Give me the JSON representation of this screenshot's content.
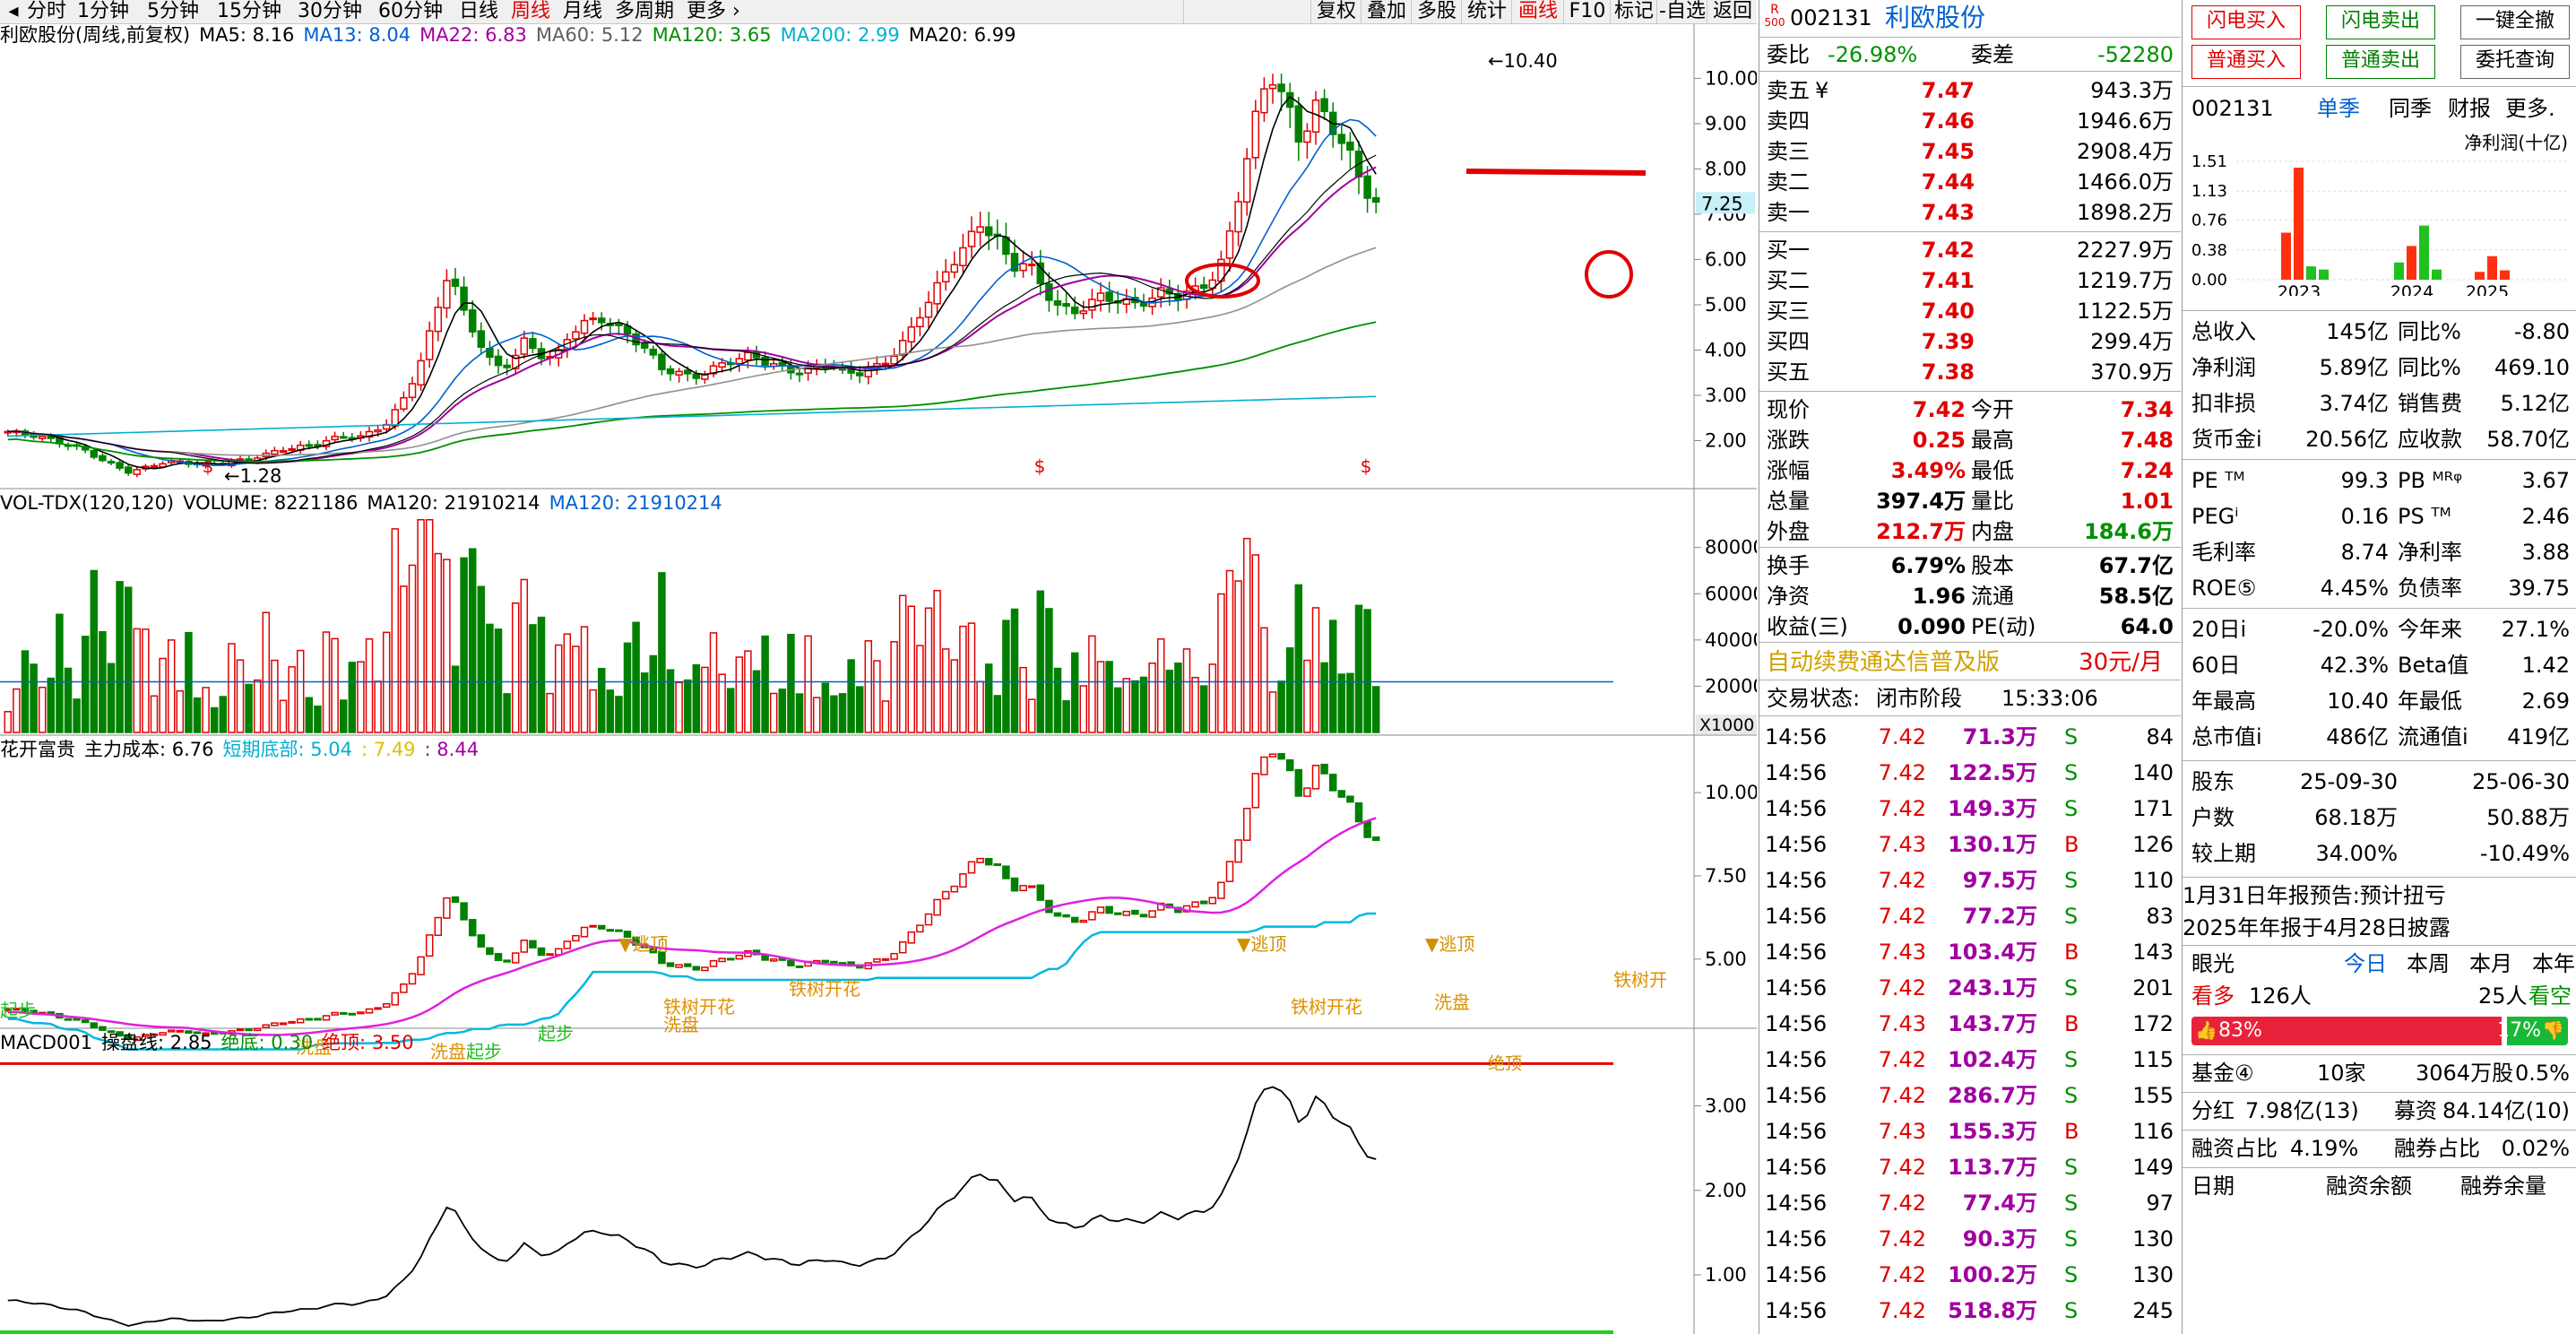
{
  "toolbar": {
    "periods": [
      "分时",
      "1分钟",
      "5分钟",
      "15分钟",
      "30分钟",
      "60分钟",
      "日线",
      "周线",
      "月线",
      "多周期",
      "更多"
    ],
    "active_period": "周线",
    "right_buttons": [
      "复权",
      "叠加",
      "多股",
      "统计",
      "画线",
      "F10",
      "标记",
      "-自选",
      "返回"
    ],
    "active_right": "画线"
  },
  "main": {
    "legend": [
      {
        "text": "利欧股份(周线,前复权)",
        "color": "#000000"
      },
      {
        "text": "MA5: 8.16",
        "color": "#000000"
      },
      {
        "text": "MA13: 8.04",
        "color": "#0060d0"
      },
      {
        "text": "MA22: 6.83",
        "color": "#a000a0"
      },
      {
        "text": "MA60: 5.12",
        "color": "#606060"
      },
      {
        "text": "MA120: 3.65",
        "color": "#009000"
      },
      {
        "text": "MA200: 2.99",
        "color": "#00b0d0"
      },
      {
        "text": "MA20: 6.99",
        "color": "#000000"
      }
    ],
    "y_ticks": [
      "10.00",
      "9.00",
      "8.00",
      "7.00",
      "6.00",
      "5.00",
      "4.00",
      "3.00",
      "2.00"
    ],
    "last_price_tag": "7.25",
    "high_label": "10.40",
    "low_label": "1.28",
    "s_marker": "$"
  },
  "volume": {
    "legend": [
      {
        "text": "VOL-TDX(120,120)",
        "color": "#000000"
      },
      {
        "text": "VOLUME: 8221186",
        "color": "#000000"
      },
      {
        "text": "MA120: 21910214",
        "color": "#000000"
      },
      {
        "text": "MA120: 21910214",
        "color": "#0060d0"
      }
    ],
    "y_ticks": [
      "80000",
      "60000",
      "40000",
      "20000"
    ],
    "unit": "X1000"
  },
  "hkfg": {
    "legend": [
      {
        "text": "花开富贵",
        "color": "#000000"
      },
      {
        "text": "主力成本: 6.76",
        "color": "#000000"
      },
      {
        "text": "短期底部: 5.04",
        "color": "#00b0d0"
      },
      {
        "text": ": 7.49",
        "color": "#e0c000"
      },
      {
        "text": ": 8.44",
        "color": "#a000a0"
      }
    ],
    "y_ticks": [
      "10.00",
      "7.50",
      "5.00"
    ],
    "labels": [
      "逃顶",
      "逃顶",
      "逃顶",
      "铁树开花",
      "铁树开花",
      "铁树开花",
      "铁树开",
      "洗盘",
      "洗盘",
      "洗盘",
      "起步",
      "起步",
      "起步",
      "洗盘"
    ]
  },
  "macd": {
    "legend": [
      {
        "text": "MACD001",
        "color": "#000000"
      },
      {
        "text": "操盘线: 2.85",
        "color": "#000000"
      },
      {
        "text": "绝底: 0.30",
        "color": "#009000"
      },
      {
        "text": "绝顶: 3.50",
        "color": "#e00000"
      }
    ],
    "y_ticks": [
      "3.00",
      "2.00",
      "1.00"
    ],
    "top_label": "绝顶"
  },
  "quote": {
    "code": "002131",
    "name": "利欧股份",
    "rank_badge": "R",
    "rank_num": "500",
    "weibi_label": "委比",
    "weibi": "-26.98%",
    "weicha_label": "委差",
    "weicha": "-52280",
    "asks": [
      {
        "label": "卖五",
        "flag": "¥",
        "price": "7.47",
        "vol": "943.3万"
      },
      {
        "label": "卖四",
        "flag": "",
        "price": "7.46",
        "vol": "1946.6万"
      },
      {
        "label": "卖三",
        "flag": "",
        "price": "7.45",
        "vol": "2908.4万"
      },
      {
        "label": "卖二",
        "flag": "",
        "price": "7.44",
        "vol": "1466.0万"
      },
      {
        "label": "卖一",
        "flag": "",
        "price": "7.43",
        "vol": "1898.2万"
      }
    ],
    "bids": [
      {
        "label": "买一",
        "price": "7.42",
        "vol": "2227.9万"
      },
      {
        "label": "买二",
        "price": "7.41",
        "vol": "1219.7万"
      },
      {
        "label": "买三",
        "price": "7.40",
        "vol": "1122.5万"
      },
      {
        "label": "买四",
        "price": "7.39",
        "vol": "299.4万"
      },
      {
        "label": "买五",
        "price": "7.38",
        "vol": "370.9万"
      }
    ],
    "stats": [
      {
        "l1": "现价",
        "v1": "7.42",
        "c1": "#e00000",
        "l2": "今开",
        "v2": "7.34",
        "c2": "#e00000"
      },
      {
        "l1": "涨跌",
        "v1": "0.25",
        "c1": "#e00000",
        "l2": "最高",
        "v2": "7.48",
        "c2": "#e00000"
      },
      {
        "l1": "涨幅",
        "v1": "3.49%",
        "c1": "#e00000",
        "l2": "最低",
        "v2": "7.24",
        "c2": "#e00000"
      },
      {
        "l1": "总量",
        "v1": "397.4万",
        "c1": "#000000",
        "l2": "量比",
        "v2": "1.01",
        "c2": "#e00000"
      },
      {
        "l1": "外盘",
        "v1": "212.7万",
        "c1": "#e00000",
        "l2": "内盘",
        "v2": "184.6万",
        "c2": "#009000"
      }
    ],
    "stats2": [
      {
        "l1": "换手",
        "v1": "6.79%",
        "l2": "股本",
        "v2": "67.7亿"
      },
      {
        "l1": "净资",
        "v1": "1.96",
        "l2": "流通",
        "v2": "58.5亿"
      },
      {
        "l1": "收益(三)",
        "v1": "0.090",
        "l2": "PE(动)",
        "v2": "64.0"
      }
    ],
    "ad_text": "自动续费通达信普及版",
    "ad_price": "30元/月",
    "status_label": "交易状态:",
    "status": "闭市阶段",
    "status_time": "15:33:06",
    "ticks": [
      {
        "t": "14:56",
        "p": "7.42",
        "v": "71.3万",
        "bs": "S",
        "n": "84"
      },
      {
        "t": "14:56",
        "p": "7.42",
        "v": "122.5万",
        "bs": "S",
        "n": "140"
      },
      {
        "t": "14:56",
        "p": "7.42",
        "v": "149.3万",
        "bs": "S",
        "n": "171"
      },
      {
        "t": "14:56",
        "p": "7.43",
        "v": "130.1万",
        "bs": "B",
        "n": "126"
      },
      {
        "t": "14:56",
        "p": "7.42",
        "v": "97.5万",
        "bs": "S",
        "n": "110"
      },
      {
        "t": "14:56",
        "p": "7.42",
        "v": "77.2万",
        "bs": "S",
        "n": "83"
      },
      {
        "t": "14:56",
        "p": "7.43",
        "v": "103.4万",
        "bs": "B",
        "n": "143"
      },
      {
        "t": "14:56",
        "p": "7.42",
        "v": "243.1万",
        "bs": "S",
        "n": "201"
      },
      {
        "t": "14:56",
        "p": "7.43",
        "v": "143.7万",
        "bs": "B",
        "n": "172"
      },
      {
        "t": "14:56",
        "p": "7.42",
        "v": "102.4万",
        "bs": "S",
        "n": "115"
      },
      {
        "t": "14:56",
        "p": "7.42",
        "v": "286.7万",
        "bs": "S",
        "n": "155"
      },
      {
        "t": "14:56",
        "p": "7.43",
        "v": "155.3万",
        "bs": "B",
        "n": "116"
      },
      {
        "t": "14:56",
        "p": "7.42",
        "v": "113.7万",
        "bs": "S",
        "n": "149"
      },
      {
        "t": "14:56",
        "p": "7.42",
        "v": "77.4万",
        "bs": "S",
        "n": "97"
      },
      {
        "t": "14:56",
        "p": "7.42",
        "v": "90.3万",
        "bs": "S",
        "n": "130"
      },
      {
        "t": "14:56",
        "p": "7.42",
        "v": "100.2万",
        "bs": "S",
        "n": "130"
      },
      {
        "t": "14:56",
        "p": "7.42",
        "v": "518.8万",
        "bs": "S",
        "n": "245"
      }
    ]
  },
  "f10": {
    "buttons_row1": [
      "闪电买入",
      "闪电卖出",
      "一键全撤"
    ],
    "buttons_row2": [
      "普通买入",
      "普通卖出",
      "委托查询"
    ],
    "code": "002131",
    "tabs": [
      "单季",
      "同季",
      "财报",
      "更多."
    ],
    "active_tab": "单季",
    "mini_title": "净利润(十亿)",
    "mini_yticks": [
      "1.51",
      "1.13",
      "0.76",
      "0.38",
      "0.00"
    ],
    "mini_years": [
      "2023",
      "2024",
      "2025"
    ],
    "mini_chart_data": {
      "type": "bar",
      "categories": [
        "2023Q1",
        "2023Q2",
        "2023Q3",
        "2023Q4",
        "2024Q1",
        "2024Q2",
        "2024Q3",
        "2024Q4",
        "2025Q1",
        "2025Q2",
        "2025Q3"
      ],
      "values": [
        0.6,
        1.43,
        0.17,
        0.13,
        0.22,
        0.43,
        0.69,
        0.13,
        0.1,
        0.3,
        0.12
      ],
      "colors": [
        "#ff3010",
        "#ff3010",
        "#20c020",
        "#20c020",
        "#20c020",
        "#ff3010",
        "#20c020",
        "#20c020",
        "#ff3010",
        "#ff3010",
        "#ff3010"
      ],
      "ylim": [
        0,
        1.51
      ]
    },
    "fin1": [
      {
        "l1": "总收入",
        "v1": "145亿",
        "l2": "同比%",
        "v2": "-8.80"
      },
      {
        "l1": "净利润",
        "v1": "5.89亿",
        "l2": "同比%",
        "v2": "469.10"
      },
      {
        "l1": "扣非损",
        "v1": "3.74亿",
        "l2": "销售费",
        "v2": "5.12亿"
      },
      {
        "l1": "货币金i",
        "v1": "20.56亿",
        "l2": "应收款",
        "v2": "58.70亿"
      }
    ],
    "fin2": [
      {
        "l1": "PE ᵀᴹ",
        "v1": "99.3",
        "l2": "PB ᴹᴿᵠ",
        "v2": "3.67"
      },
      {
        "l1": "PEGⁱ",
        "v1": "0.16",
        "l2": "PS ᵀᴹ",
        "v2": "2.46"
      },
      {
        "l1": "毛利率",
        "v1": "8.74",
        "l2": "净利率",
        "v2": "3.88"
      },
      {
        "l1": "ROE⑤",
        "v1": "4.45%",
        "l2": "负债率",
        "v2": "39.75"
      }
    ],
    "fin3": [
      {
        "l1": "20日i",
        "v1": "-20.0%",
        "l2": "今年来",
        "v2": "27.1%"
      },
      {
        "l1": "60日",
        "v1": "42.3%",
        "l2": "Beta值",
        "v2": "1.42"
      },
      {
        "l1": "年最高",
        "v1": "10.40",
        "l2": "年最低",
        "v2": "2.69"
      },
      {
        "l1": "总市值i",
        "v1": "486亿",
        "l2": "流通值i",
        "v2": "419亿"
      }
    ],
    "holders": [
      {
        "l1": "股东",
        "v1": "25-09-30",
        "v2": "25-06-30"
      },
      {
        "l1": "户数",
        "v1": "68.18万",
        "v2": "50.88万"
      },
      {
        "l1": "较上期",
        "v1": "34.00%",
        "v2": "-10.49%"
      }
    ],
    "notice1": "1月31日年报预告:预计扭亏",
    "notice2": "2025年年报于4月28日披露",
    "eye_label": "眼光",
    "eye_tabs": [
      "今日",
      "本周",
      "本月",
      "本年"
    ],
    "active_eye_tab": "今日",
    "bull_label": "看多",
    "bull_count": "126人",
    "bear_count": "25人",
    "bear_label": "看空",
    "bull_pct": 83,
    "bull_pct_text": "83%",
    "bear_pct_text": "17%",
    "fund_label": "基金④",
    "fund_count": "10家",
    "fund_shares": "3064万股",
    "fund_pct": "0.5%",
    "div_label": "分红",
    "div_value": "7.98亿(13)",
    "raise_label": "募资",
    "raise_value": "84.14亿(10)",
    "margin_label": "融资占比",
    "margin_value": "4.19%",
    "short_label": "融券占比",
    "short_value": "0.02%",
    "footer": [
      "日期",
      "融资余额",
      "融券余量"
    ]
  }
}
